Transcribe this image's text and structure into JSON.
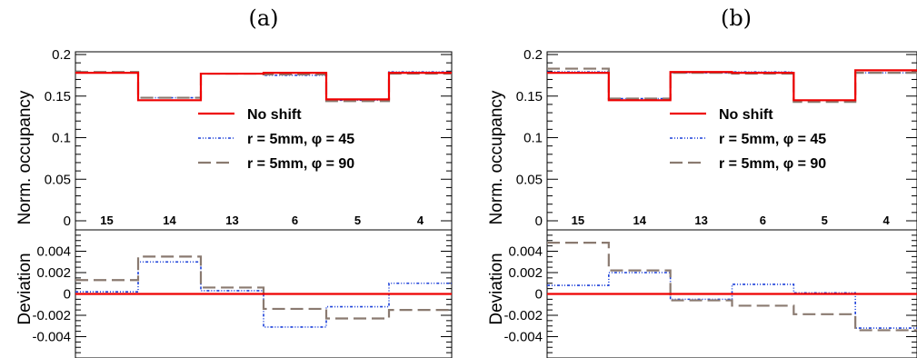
{
  "panel_labels": [
    "(a)",
    "(b)"
  ],
  "colors": {
    "no_shift": "#ee0000",
    "phi45": "#1a3fd9",
    "phi90": "#8a7a70",
    "frame": "#000000"
  },
  "chart_data": [
    {
      "type": "line",
      "panel": "(a)",
      "title": "",
      "categories": [
        "15",
        "14",
        "13",
        "6",
        "5",
        "4"
      ],
      "upper": {
        "ylabel": "Norm. occupancy",
        "ylim": [
          0,
          0.2
        ],
        "yticks": [
          "0",
          "0.05",
          "0.1",
          "0.15",
          "0.2"
        ],
        "legend_position": "center",
        "series": [
          {
            "name": "No shift",
            "values": [
              0.178,
              0.145,
              0.177,
              0.178,
              0.146,
              0.178
            ]
          },
          {
            "name": "r = 5mm, φ = 45",
            "values": [
              0.178,
              0.148,
              0.177,
              0.175,
              0.145,
              0.179
            ]
          },
          {
            "name": "r = 5mm, φ = 90",
            "values": [
              0.179,
              0.148,
              0.177,
              0.176,
              0.144,
              0.177
            ]
          }
        ]
      },
      "lower": {
        "ylabel": "Deviation",
        "ylim": [
          -0.006,
          0.006
        ],
        "yticks": [
          "-0.004",
          "-0.002",
          "0",
          "0.002",
          "0.004"
        ],
        "series": [
          {
            "name": "No shift",
            "values": [
              0,
              0,
              0,
              0,
              0,
              0
            ]
          },
          {
            "name": "r = 5mm, φ = 45",
            "values": [
              0.0002,
              0.003,
              0.0003,
              -0.0031,
              -0.0012,
              0.001
            ]
          },
          {
            "name": "r = 5mm, φ = 90",
            "values": [
              0.0013,
              0.0035,
              0.0006,
              -0.0014,
              -0.0023,
              -0.0015
            ]
          }
        ]
      }
    },
    {
      "type": "line",
      "panel": "(b)",
      "title": "",
      "categories": [
        "15",
        "14",
        "13",
        "6",
        "5",
        "4"
      ],
      "upper": {
        "ylabel": "Norm. occupancy",
        "ylim": [
          0,
          0.2
        ],
        "yticks": [
          "0",
          "0.05",
          "0.1",
          "0.15",
          "0.2"
        ],
        "legend_position": "center",
        "series": [
          {
            "name": "No shift",
            "values": [
              0.178,
              0.145,
              0.179,
              0.178,
              0.145,
              0.181
            ]
          },
          {
            "name": "r = 5mm, φ = 45",
            "values": [
              0.179,
              0.147,
              0.178,
              0.179,
              0.145,
              0.178
            ]
          },
          {
            "name": "r = 5mm, φ = 90",
            "values": [
              0.183,
              0.147,
              0.178,
              0.177,
              0.143,
              0.178
            ]
          }
        ]
      },
      "lower": {
        "ylabel": "Deviation",
        "ylim": [
          -0.006,
          0.006
        ],
        "yticks": [
          "-0.004",
          "-0.002",
          "0",
          "0.002",
          "0.004"
        ],
        "series": [
          {
            "name": "No shift",
            "values": [
              0,
              0,
              0,
              0,
              0,
              0
            ]
          },
          {
            "name": "r = 5mm, φ = 45",
            "values": [
              0.0008,
              0.002,
              -0.0005,
              0.0009,
              0.0001,
              -0.0032
            ]
          },
          {
            "name": "r = 5mm, φ = 90",
            "values": [
              0.0048,
              0.0022,
              -0.0006,
              -0.0011,
              -0.0019,
              -0.0034
            ]
          }
        ]
      }
    }
  ]
}
